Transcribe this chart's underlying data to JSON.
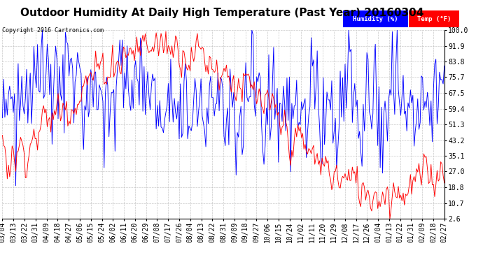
{
  "title": "Outdoor Humidity At Daily High Temperature (Past Year) 20160304",
  "copyright": "Copyright 2016 Cartronics.com",
  "legend_humidity": "Humidity (%)",
  "legend_temp": "Temp (°F)",
  "ylim": [
    2.6,
    100.0
  ],
  "yticks": [
    100.0,
    91.9,
    83.8,
    75.7,
    67.5,
    59.4,
    51.3,
    43.2,
    35.1,
    27.0,
    18.8,
    10.7,
    2.6
  ],
  "background_color": "#ffffff",
  "grid_color": "#bbbbbb",
  "humidity_color": "#0000ff",
  "temp_color": "#ff0000",
  "title_fontsize": 11,
  "tick_fontsize": 7,
  "x_labels": [
    "03/04",
    "03/13",
    "03/22",
    "03/31",
    "04/09",
    "04/18",
    "04/27",
    "05/06",
    "05/15",
    "05/24",
    "06/02",
    "06/11",
    "06/20",
    "06/29",
    "07/08",
    "07/17",
    "07/26",
    "08/04",
    "08/13",
    "08/22",
    "08/31",
    "09/09",
    "09/18",
    "09/27",
    "10/06",
    "10/15",
    "10/24",
    "11/02",
    "11/11",
    "11/20",
    "11/29",
    "12/08",
    "12/17",
    "12/26",
    "01/04",
    "01/13",
    "01/22",
    "01/31",
    "02/09",
    "02/18",
    "02/27"
  ],
  "n_days": 366,
  "temp_seed": 7,
  "hum_seed": 13
}
